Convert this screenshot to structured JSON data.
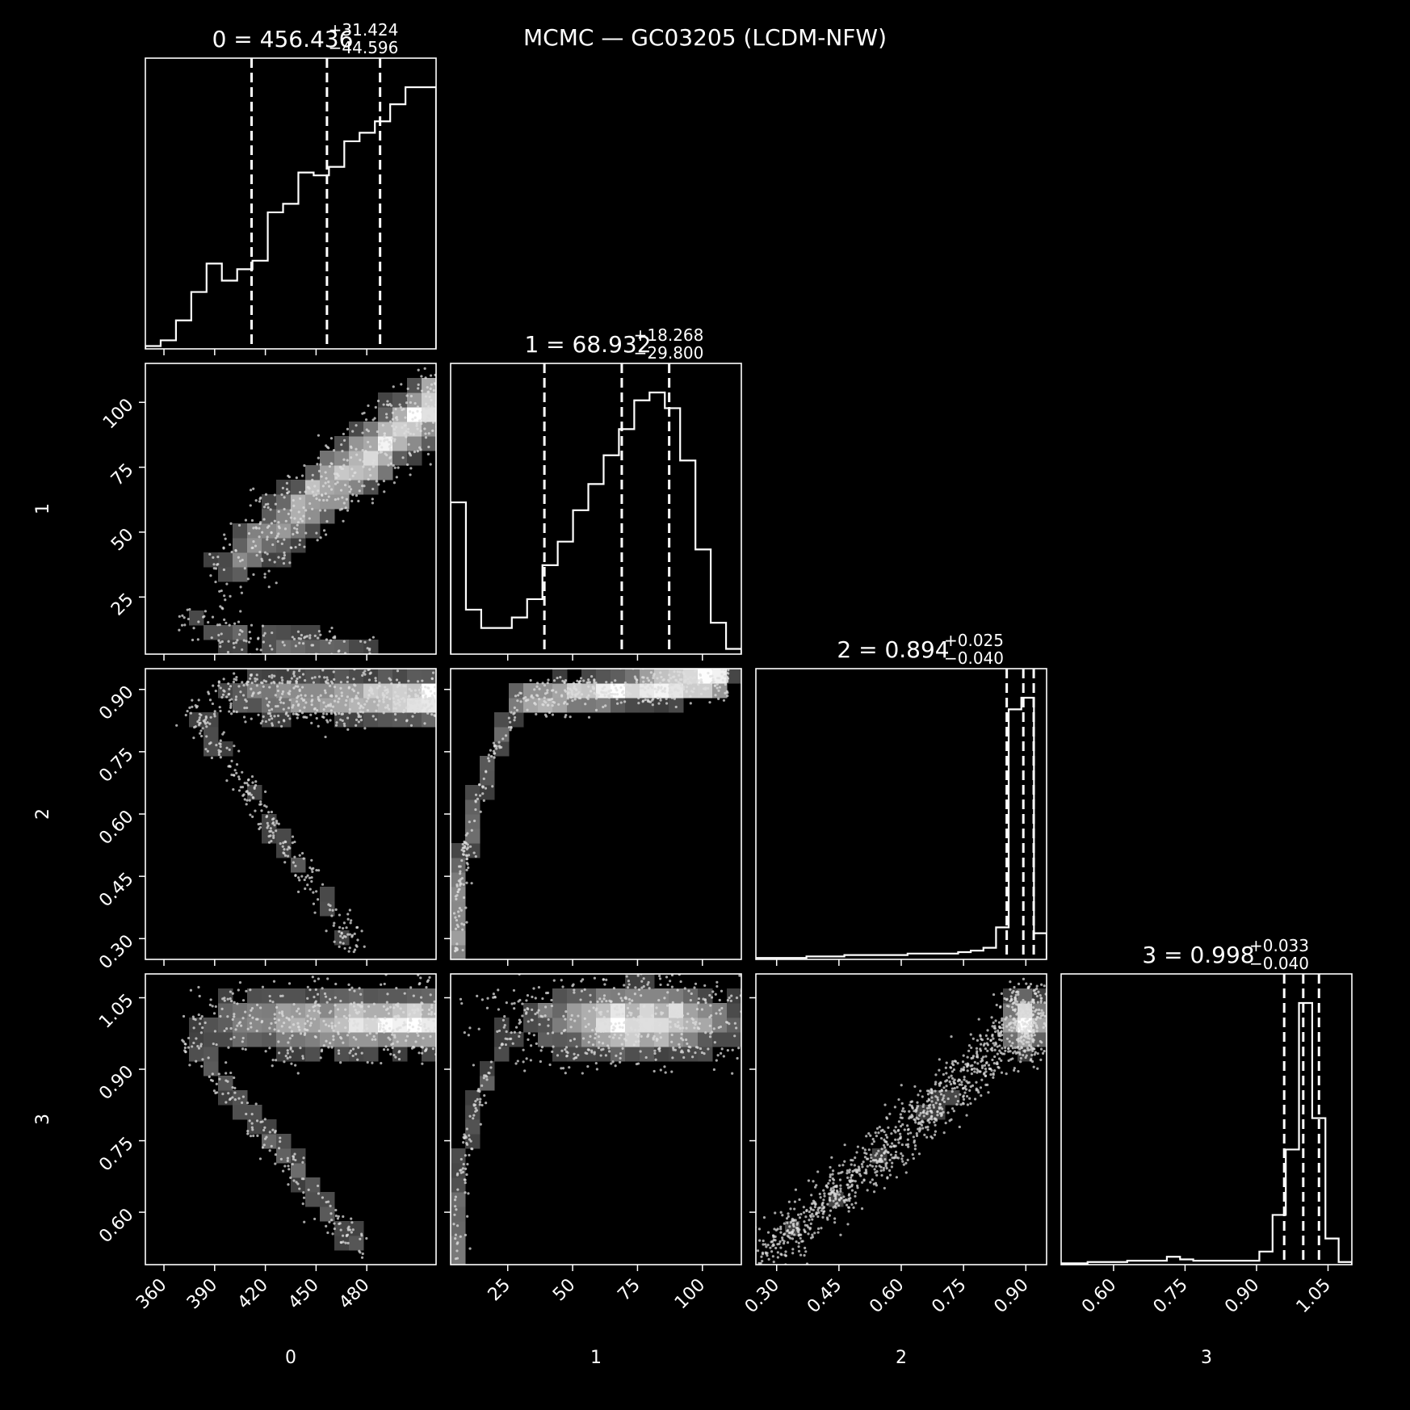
{
  "figure_title": "MCMC — GC03205 (LCDM-NFW)",
  "colors": {
    "background": "#000000",
    "foreground": "#ffffff"
  },
  "chart_data": {
    "type": "corner",
    "parameters": [
      {
        "label": "0",
        "median": "456.436",
        "plus": "+31.424",
        "minus": "−44.596",
        "range": [
          349,
          521
        ],
        "ticks": [
          360,
          390,
          420,
          450,
          480
        ],
        "quantiles": [
          411.84,
          456.436,
          487.86
        ],
        "hist_bins": [
          1,
          3,
          10,
          20,
          30,
          24,
          28,
          31,
          48,
          51,
          62,
          61,
          64,
          73,
          76,
          80,
          86,
          92,
          92
        ]
      },
      {
        "label": "1",
        "median": "68.932",
        "plus": "+18.268",
        "minus": "−29.800",
        "range": [
          3,
          115
        ],
        "ticks": [
          25,
          50,
          75,
          100
        ],
        "quantiles": [
          39.13,
          68.932,
          87.2
        ],
        "hist_bins": [
          58,
          17,
          10,
          10,
          14,
          21,
          34,
          43,
          55,
          65,
          76,
          86,
          97,
          100,
          94,
          74,
          40,
          12,
          2
        ]
      },
      {
        "label": "2",
        "median": "0.894",
        "plus": "+0.025",
        "minus": "−0.040",
        "range": [
          0.25,
          0.95
        ],
        "ticks": [
          0.3,
          0.45,
          0.6,
          0.75,
          0.9
        ],
        "quantiles": [
          0.854,
          0.894,
          0.919
        ],
        "hist_bins": [
          0.5,
          0.5,
          0.5,
          0.5,
          1,
          1,
          1,
          1.5,
          1.5,
          1.5,
          1.5,
          1.5,
          2,
          2,
          2,
          2,
          2.5,
          3,
          4,
          11,
          86,
          90,
          9
        ]
      },
      {
        "label": "3",
        "median": "0.998",
        "plus": "+0.033",
        "minus": "−0.040",
        "range": [
          0.49,
          1.1
        ],
        "ticks": [
          0.6,
          0.75,
          0.9,
          1.05
        ],
        "quantiles": [
          0.958,
          0.998,
          1.031
        ],
        "hist_bins": [
          0.5,
          0.5,
          1,
          1,
          1,
          1.5,
          1.5,
          1.5,
          3,
          2,
          1.5,
          1.5,
          1.5,
          1.5,
          1.5,
          5,
          19,
          44,
          100,
          56,
          10,
          1
        ]
      }
    ],
    "pairs": [
      {
        "x": 0,
        "y": 1,
        "relation": "linear",
        "x_from": 385,
        "y_from": 30,
        "x_to": 521,
        "y_to": 100,
        "spread": 0.06,
        "tail": {
          "x_from": 372,
          "y_from": 20,
          "x_to": 480,
          "y_to": 4
        }
      },
      {
        "x": 0,
        "y": 2,
        "relation": "branch",
        "x_main": [
          385,
          521
        ],
        "y_main": 0.88,
        "spread": 0.035,
        "tail": {
          "x_from": 375,
          "y_from": 0.86,
          "x_to": 475,
          "y_to": 0.27
        }
      },
      {
        "x": 0,
        "y": 3,
        "relation": "branch",
        "x_main": [
          370,
          521
        ],
        "y_main": 1.0,
        "spread": 0.04,
        "tail": {
          "x_from": 375,
          "y_from": 0.96,
          "x_to": 475,
          "y_to": 0.52
        }
      },
      {
        "x": 1,
        "y": 2,
        "relation": "curve",
        "anchor": [
          26,
          0.87
        ],
        "peak": [
          85,
          0.91
        ]
      },
      {
        "x": 1,
        "y": 3,
        "relation": "blob",
        "center": [
          75,
          1.0
        ],
        "sx": 22,
        "sy": 0.035
      },
      {
        "x": 2,
        "y": 3,
        "relation": "diagonal",
        "x_from": 0.27,
        "y_from": 0.5,
        "x_to": 0.9,
        "y_to": 1.0
      }
    ]
  }
}
